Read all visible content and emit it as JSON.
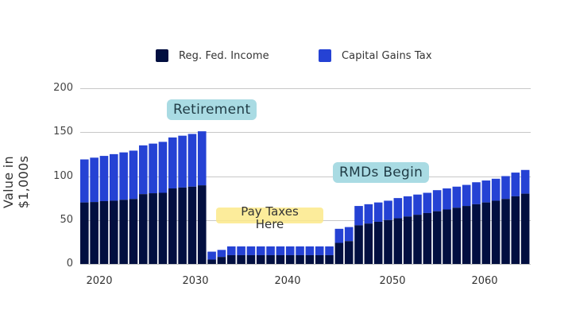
{
  "chart_data": {
    "type": "bar",
    "stacked": true,
    "title": "",
    "xlabel": "",
    "ylabel": "Value in $1,000s",
    "ylim": [
      0,
      200
    ],
    "yticks": [
      0,
      50,
      100,
      150,
      200
    ],
    "xticks": [
      2020,
      2030,
      2040,
      2050,
      2060
    ],
    "grid": true,
    "legend_position": "top",
    "colors": {
      "Reg. Fed. Income": "#020f40",
      "Capital Gains Tax": "#2542d4"
    },
    "x": [
      2018,
      2019,
      2020,
      2021,
      2022,
      2023,
      2024,
      2025,
      2026,
      2027,
      2028,
      2029,
      2030,
      2031,
      2032,
      2033,
      2034,
      2035,
      2036,
      2037,
      2038,
      2039,
      2040,
      2041,
      2042,
      2043,
      2044,
      2045,
      2046,
      2047,
      2048,
      2049,
      2050,
      2051,
      2052,
      2053,
      2054,
      2055,
      2056,
      2057,
      2058,
      2059,
      2060,
      2061,
      2062,
      2063
    ],
    "series": [
      {
        "name": "Reg. Fed. Income",
        "values": [
          70,
          70.5,
          71.5,
          72,
          73,
          74,
          79.5,
          80.5,
          81,
          86,
          87,
          88,
          89.5,
          5,
          8,
          10,
          10,
          10,
          10,
          10,
          10,
          10,
          10,
          10,
          10,
          10,
          24,
          26,
          44,
          46,
          48,
          50,
          52,
          54,
          56,
          58,
          60,
          62,
          64,
          66,
          68,
          70,
          72,
          74,
          77,
          80
        ]
      },
      {
        "name": "Capital Gains Tax",
        "values": [
          49,
          50.5,
          51.5,
          53,
          54,
          55,
          55.5,
          56.5,
          58,
          58,
          59,
          60,
          61.5,
          9,
          8,
          10,
          10,
          10,
          10,
          10,
          10,
          10,
          10,
          10,
          10,
          10,
          16,
          16,
          22,
          22,
          22,
          22,
          23,
          23,
          23,
          23,
          24,
          24,
          24,
          24,
          25,
          25,
          25,
          26,
          27,
          27
        ]
      }
    ],
    "annotations": [
      {
        "text": "Retirement",
        "x": 2030
      },
      {
        "text": "Pay Taxes Here",
        "x": 2037
      },
      {
        "text": "RMDs Begin",
        "x": 2046
      }
    ]
  },
  "legend": {
    "items": [
      {
        "label": "Reg. Fed. Income",
        "color": "#020f40"
      },
      {
        "label": "Capital Gains Tax",
        "color": "#2542d4"
      }
    ]
  },
  "axis": {
    "ylabel": "Value in $1,000s",
    "yticks": [
      "200",
      "150",
      "100",
      "50",
      "0"
    ],
    "xticks": [
      "2020",
      "2030",
      "2040",
      "2050",
      "2060"
    ]
  },
  "annotations": {
    "retirement": "Retirement",
    "pay_taxes_line1": "Pay Taxes",
    "pay_taxes_line2": "Here",
    "rmds": "RMDs Begin"
  }
}
